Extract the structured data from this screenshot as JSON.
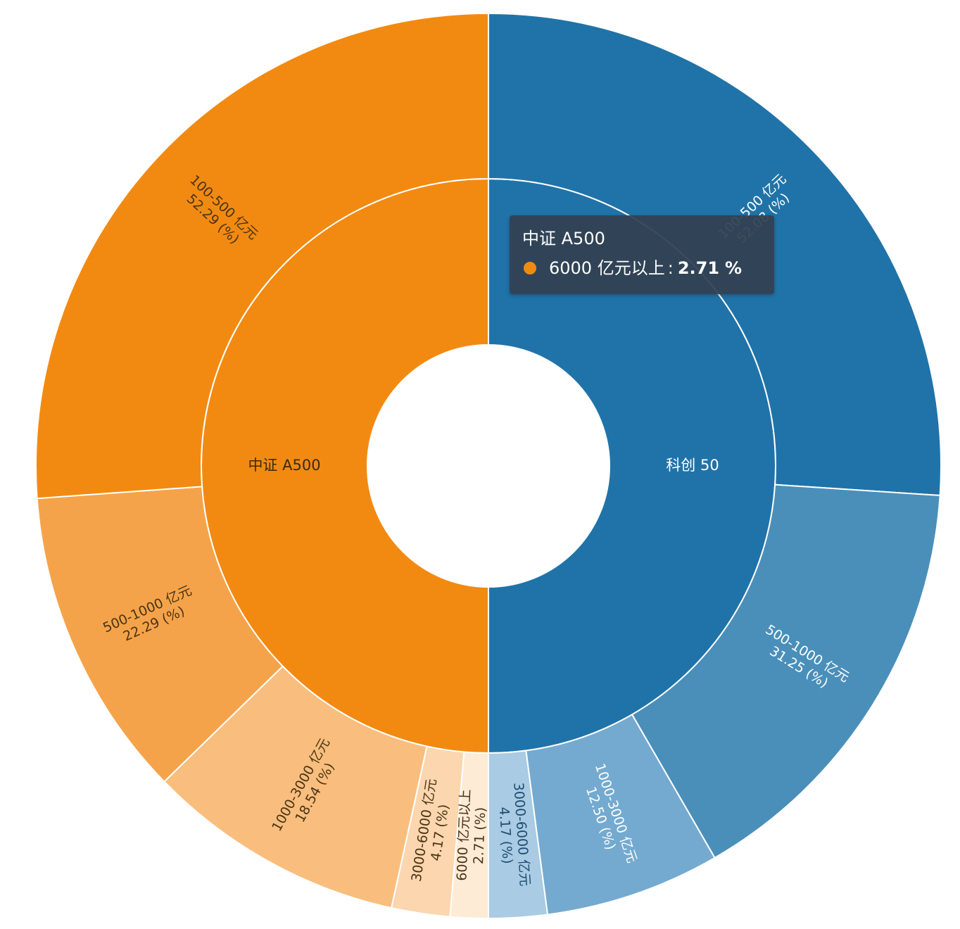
{
  "chart_data": {
    "type": "sunburst",
    "unit": "(%)",
    "rings": [
      "index",
      "market_cap_bucket"
    ],
    "series": [
      {
        "name": "中证 A500",
        "share": 0.5,
        "color": "#F28A12",
        "children": [
          {
            "label": "100-500 亿元",
            "value": 52.29,
            "value_text": "52.29",
            "color": "#F28A12"
          },
          {
            "label": "500-1000 亿元",
            "value": 22.29,
            "value_text": "22.29",
            "color": "#F5A34A"
          },
          {
            "label": "1000-3000 亿元",
            "value": 18.54,
            "value_text": "18.54",
            "color": "#F9BE7D"
          },
          {
            "label": "3000-6000 亿元",
            "value": 4.17,
            "value_text": "4.17",
            "color": "#FBD6AE"
          },
          {
            "label": "6000 亿元以上",
            "value": 2.71,
            "value_text": "2.71",
            "color": "#FDEBD6"
          }
        ]
      },
      {
        "name": "科创 50",
        "share": 0.5,
        "color": "#2073A8",
        "children": [
          {
            "label": "100-500 亿元",
            "value": 52.08,
            "value_text": "52.08",
            "color": "#2073A8"
          },
          {
            "label": "500-1000 亿元",
            "value": 31.25,
            "value_text": "31.25",
            "color": "#4A8FBA"
          },
          {
            "label": "1000-3000 亿元",
            "value": 12.5,
            "value_text": "12.50",
            "color": "#74AAD0"
          },
          {
            "label": "3000-6000 亿元",
            "value": 4.17,
            "value_text": "4.17",
            "color": "#A9CBE3"
          }
        ]
      }
    ]
  },
  "tooltip": {
    "title": "中证 A500",
    "item_label": "6000 亿元以上",
    "separator": ":",
    "value": "2.71",
    "unit": "%",
    "marker_color": "#F28A12"
  }
}
